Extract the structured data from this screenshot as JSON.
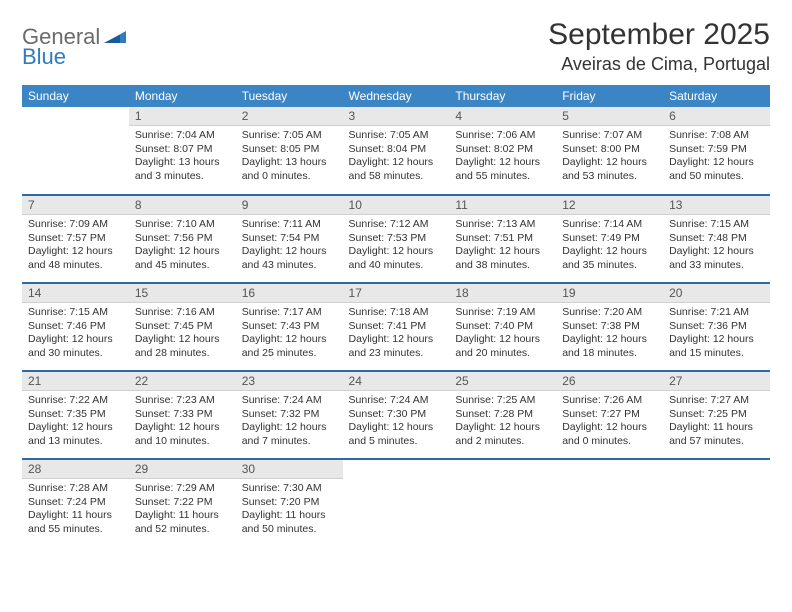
{
  "logo": {
    "general": "General",
    "blue": "Blue"
  },
  "title": "September 2025",
  "location": "Aveiras de Cima, Portugal",
  "colors": {
    "header_bg": "#3b85c5",
    "header_text": "#ffffff",
    "date_bg": "#e8e8e8",
    "row_sep": "#2f6aa5",
    "logo_gray": "#6b6b6b",
    "logo_blue": "#2f7cc0"
  },
  "day_names": [
    "Sunday",
    "Monday",
    "Tuesday",
    "Wednesday",
    "Thursday",
    "Friday",
    "Saturday"
  ],
  "weeks": [
    [
      null,
      {
        "d": "1",
        "sr": "7:04 AM",
        "ss": "8:07 PM",
        "dl": "13 hours and 3 minutes."
      },
      {
        "d": "2",
        "sr": "7:05 AM",
        "ss": "8:05 PM",
        "dl": "13 hours and 0 minutes."
      },
      {
        "d": "3",
        "sr": "7:05 AM",
        "ss": "8:04 PM",
        "dl": "12 hours and 58 minutes."
      },
      {
        "d": "4",
        "sr": "7:06 AM",
        "ss": "8:02 PM",
        "dl": "12 hours and 55 minutes."
      },
      {
        "d": "5",
        "sr": "7:07 AM",
        "ss": "8:00 PM",
        "dl": "12 hours and 53 minutes."
      },
      {
        "d": "6",
        "sr": "7:08 AM",
        "ss": "7:59 PM",
        "dl": "12 hours and 50 minutes."
      }
    ],
    [
      {
        "d": "7",
        "sr": "7:09 AM",
        "ss": "7:57 PM",
        "dl": "12 hours and 48 minutes."
      },
      {
        "d": "8",
        "sr": "7:10 AM",
        "ss": "7:56 PM",
        "dl": "12 hours and 45 minutes."
      },
      {
        "d": "9",
        "sr": "7:11 AM",
        "ss": "7:54 PM",
        "dl": "12 hours and 43 minutes."
      },
      {
        "d": "10",
        "sr": "7:12 AM",
        "ss": "7:53 PM",
        "dl": "12 hours and 40 minutes."
      },
      {
        "d": "11",
        "sr": "7:13 AM",
        "ss": "7:51 PM",
        "dl": "12 hours and 38 minutes."
      },
      {
        "d": "12",
        "sr": "7:14 AM",
        "ss": "7:49 PM",
        "dl": "12 hours and 35 minutes."
      },
      {
        "d": "13",
        "sr": "7:15 AM",
        "ss": "7:48 PM",
        "dl": "12 hours and 33 minutes."
      }
    ],
    [
      {
        "d": "14",
        "sr": "7:15 AM",
        "ss": "7:46 PM",
        "dl": "12 hours and 30 minutes."
      },
      {
        "d": "15",
        "sr": "7:16 AM",
        "ss": "7:45 PM",
        "dl": "12 hours and 28 minutes."
      },
      {
        "d": "16",
        "sr": "7:17 AM",
        "ss": "7:43 PM",
        "dl": "12 hours and 25 minutes."
      },
      {
        "d": "17",
        "sr": "7:18 AM",
        "ss": "7:41 PM",
        "dl": "12 hours and 23 minutes."
      },
      {
        "d": "18",
        "sr": "7:19 AM",
        "ss": "7:40 PM",
        "dl": "12 hours and 20 minutes."
      },
      {
        "d": "19",
        "sr": "7:20 AM",
        "ss": "7:38 PM",
        "dl": "12 hours and 18 minutes."
      },
      {
        "d": "20",
        "sr": "7:21 AM",
        "ss": "7:36 PM",
        "dl": "12 hours and 15 minutes."
      }
    ],
    [
      {
        "d": "21",
        "sr": "7:22 AM",
        "ss": "7:35 PM",
        "dl": "12 hours and 13 minutes."
      },
      {
        "d": "22",
        "sr": "7:23 AM",
        "ss": "7:33 PM",
        "dl": "12 hours and 10 minutes."
      },
      {
        "d": "23",
        "sr": "7:24 AM",
        "ss": "7:32 PM",
        "dl": "12 hours and 7 minutes."
      },
      {
        "d": "24",
        "sr": "7:24 AM",
        "ss": "7:30 PM",
        "dl": "12 hours and 5 minutes."
      },
      {
        "d": "25",
        "sr": "7:25 AM",
        "ss": "7:28 PM",
        "dl": "12 hours and 2 minutes."
      },
      {
        "d": "26",
        "sr": "7:26 AM",
        "ss": "7:27 PM",
        "dl": "12 hours and 0 minutes."
      },
      {
        "d": "27",
        "sr": "7:27 AM",
        "ss": "7:25 PM",
        "dl": "11 hours and 57 minutes."
      }
    ],
    [
      {
        "d": "28",
        "sr": "7:28 AM",
        "ss": "7:24 PM",
        "dl": "11 hours and 55 minutes."
      },
      {
        "d": "29",
        "sr": "7:29 AM",
        "ss": "7:22 PM",
        "dl": "11 hours and 52 minutes."
      },
      {
        "d": "30",
        "sr": "7:30 AM",
        "ss": "7:20 PM",
        "dl": "11 hours and 50 minutes."
      },
      null,
      null,
      null,
      null
    ]
  ],
  "labels": {
    "sunrise": "Sunrise:",
    "sunset": "Sunset:",
    "daylight": "Daylight:"
  }
}
